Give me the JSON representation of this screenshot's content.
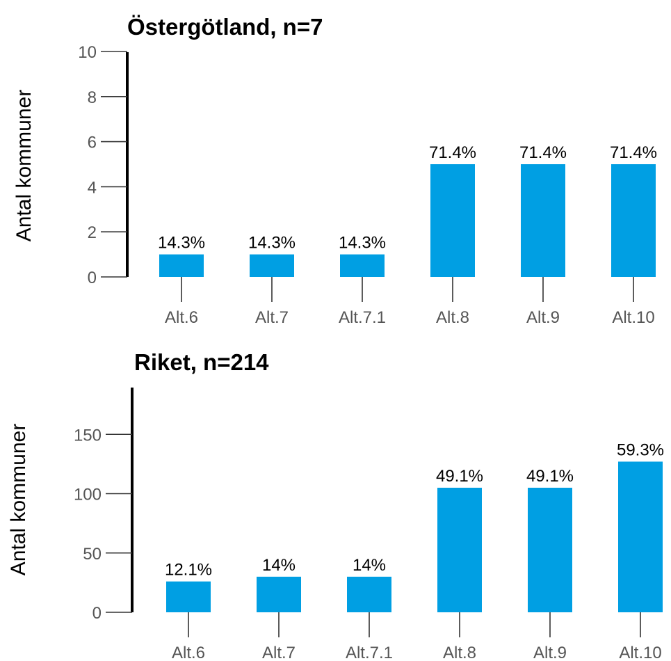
{
  "chart_data": [
    {
      "type": "bar",
      "title": "Östergötland, n=7",
      "ylabel": "Antal kommuner",
      "xlabel": "",
      "categories": [
        "Alt.6",
        "Alt.7",
        "Alt.7.1",
        "Alt.8",
        "Alt.9",
        "Alt.10"
      ],
      "values": [
        1,
        1,
        1,
        5,
        5,
        5
      ],
      "data_labels": [
        "14.3%",
        "14.3%",
        "14.3%",
        "71.4%",
        "71.4%",
        "71.4%"
      ],
      "yticks": [
        0,
        2,
        4,
        6,
        8,
        10
      ],
      "ytick_labels": [
        "0",
        "2",
        "4",
        "6",
        "8",
        "10"
      ],
      "ylim": [
        0,
        10
      ],
      "grid": false,
      "color": "#009FE3"
    },
    {
      "type": "bar",
      "title": "Riket, n=214",
      "ylabel": "Antal kommuner",
      "xlabel": "",
      "categories": [
        "Alt.6",
        "Alt.7",
        "Alt.7.1",
        "Alt.8",
        "Alt.9",
        "Alt.10"
      ],
      "values": [
        26,
        30,
        30,
        105,
        105,
        127
      ],
      "data_labels": [
        "12.1%",
        "14%",
        "14%",
        "49.1%",
        "49.1%",
        "59.3%"
      ],
      "yticks": [
        0,
        50,
        100,
        150
      ],
      "ytick_labels": [
        "0",
        "50",
        "100",
        "150"
      ],
      "ylim": [
        0,
        190
      ],
      "grid": false,
      "color": "#009FE3"
    }
  ]
}
